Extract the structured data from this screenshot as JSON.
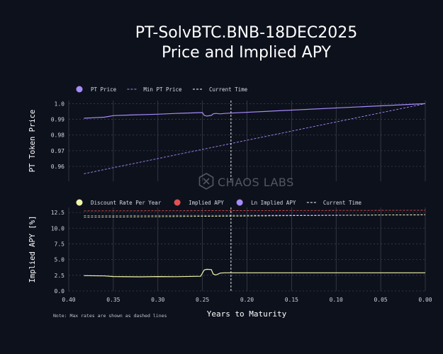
{
  "title_line1": "PT-SolvBTC.BNB-18DEC2025",
  "title_line2": "Price and Implied APY",
  "watermark": "CHAOS LABS",
  "note": "Note: Max rates are shown as dashed lines",
  "xlabel": "Years to Maturity",
  "current_time_x": 0.218,
  "colors": {
    "bg": "#0d111c",
    "grid": "#3a3f4b",
    "pt": "#a78bfa",
    "discount": "#f0f5a8",
    "implied": "#e05252",
    "ln": "#a78bfa",
    "current": "#ffffff"
  },
  "chart_data": [
    {
      "type": "line",
      "ylabel": "PT Token Price",
      "xlim": [
        0.4,
        0.0
      ],
      "ylim": [
        0.9505,
        1.002
      ],
      "xticks": [
        "0.40",
        "0.35",
        "0.30",
        "0.25",
        "0.20",
        "0.15",
        "0.10",
        "0.05",
        "0.00"
      ],
      "yticks": [
        0.96,
        0.97,
        0.98,
        0.99,
        1.0
      ],
      "ytick_labels": [
        "0.96",
        "0.97",
        "0.98",
        "0.99",
        "1.0"
      ],
      "legend": [
        {
          "label": "PT Price",
          "style": "dot",
          "color": "#a78bfa"
        },
        {
          "label": "Min PT Price",
          "style": "dash",
          "color": "#a78bfa"
        },
        {
          "label": "Current Time",
          "style": "dash",
          "color": "#ffffff"
        }
      ],
      "series": [
        {
          "name": "PT Price",
          "style": "solid",
          "color": "#a78bfa",
          "x": [
            0.383,
            0.36,
            0.35,
            0.33,
            0.3,
            0.28,
            0.25,
            0.248,
            0.245,
            0.24,
            0.238,
            0.235,
            0.23,
            0.225,
            0.218,
            0.0
          ],
          "y": [
            0.9907,
            0.9914,
            0.9924,
            0.9928,
            0.9933,
            0.9938,
            0.9943,
            0.9925,
            0.9921,
            0.9925,
            0.9935,
            0.9938,
            0.9935,
            0.9938,
            0.994,
            1.0
          ]
        },
        {
          "name": "Min PT Price",
          "style": "dash",
          "color": "#a78bfa",
          "x": [
            0.383,
            0.0
          ],
          "y": [
            0.9553,
            1.0
          ]
        }
      ]
    },
    {
      "type": "line",
      "ylabel": "Implied APY [%]",
      "xlim": [
        0.4,
        0.0
      ],
      "ylim": [
        0.0,
        13.3
      ],
      "xticks": [
        "0.40",
        "0.35",
        "0.30",
        "0.25",
        "0.20",
        "0.15",
        "0.10",
        "0.05",
        "0.00"
      ],
      "yticks": [
        0.0,
        2.5,
        5.0,
        7.5,
        10.0,
        12.5
      ],
      "ytick_labels": [
        "0.0",
        "2.5",
        "5.0",
        "7.5",
        "10.0",
        "12.5"
      ],
      "legend": [
        {
          "label": "Discount Rate Per Year",
          "style": "dot",
          "color": "#f0f5a8"
        },
        {
          "label": "Implied APY",
          "style": "dot",
          "color": "#e05252"
        },
        {
          "label": "Ln Implied APY",
          "style": "dot",
          "color": "#a78bfa"
        },
        {
          "label": "Current Time",
          "style": "dash",
          "color": "#ffffff"
        }
      ],
      "series": [
        {
          "name": "Discount Rate Per Year",
          "style": "solid",
          "color": "#f0f5a8",
          "x": [
            0.383,
            0.36,
            0.35,
            0.32,
            0.3,
            0.28,
            0.252,
            0.248,
            0.245,
            0.24,
            0.238,
            0.235,
            0.23,
            0.225,
            0.218,
            0.0
          ],
          "y": [
            2.45,
            2.4,
            2.3,
            2.25,
            2.3,
            2.28,
            2.35,
            3.35,
            3.45,
            3.4,
            2.7,
            2.55,
            2.85,
            2.9,
            2.9,
            2.9
          ]
        },
        {
          "name": "Implied APY",
          "style": "dash",
          "color": "#e05252",
          "x": [
            0.383,
            0.0
          ],
          "y": [
            12.75,
            12.85
          ]
        },
        {
          "name": "Ln Implied APY",
          "style": "dash",
          "color": "#a78bfa",
          "x": [
            0.383,
            0.0
          ],
          "y": [
            12.0,
            12.1
          ]
        },
        {
          "name": "Discount Rate Per Year",
          "style": "dash",
          "color": "#f0f5a8",
          "x": [
            0.383,
            0.0
          ],
          "y": [
            11.75,
            12.15
          ]
        }
      ]
    }
  ]
}
